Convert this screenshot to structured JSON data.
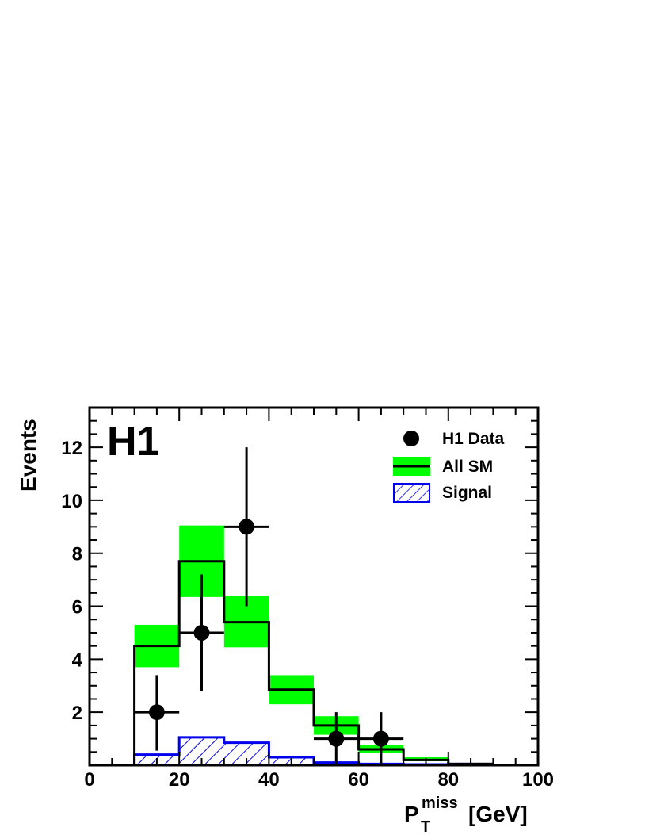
{
  "chart_data": {
    "type": "bar",
    "experiment_label": "H1",
    "xlabel": {
      "main": "P",
      "sup": "miss",
      "sub": "T",
      "unit": "[GeV]"
    },
    "ylabel": "Events",
    "xlim": [
      0,
      100
    ],
    "ylim": [
      0,
      13.5
    ],
    "x_ticks": [
      0,
      20,
      40,
      60,
      80,
      100
    ],
    "x_tick_labels": [
      "0",
      "20",
      "40",
      "60",
      "80",
      "100"
    ],
    "y_ticks": [
      2,
      4,
      6,
      8,
      10,
      12
    ],
    "y_tick_labels": [
      "2",
      "4",
      "6",
      "8",
      "10",
      "12"
    ],
    "grid": false,
    "legend_position": "top-right",
    "bin_edges": [
      0,
      10,
      20,
      30,
      40,
      50,
      60,
      70,
      80,
      90,
      100
    ],
    "series": [
      {
        "name": "H1 Data",
        "kind": "points",
        "color": "#000000",
        "points": [
          {
            "x": 15,
            "y": 2,
            "err_low": 1.45,
            "err_high": 1.4,
            "x_half_width": 5
          },
          {
            "x": 25,
            "y": 5,
            "err_low": 2.2,
            "err_high": 2.2,
            "x_half_width": 5
          },
          {
            "x": 35,
            "y": 9,
            "err_low": 3.0,
            "err_high": 3.0,
            "x_half_width": 5
          },
          {
            "x": 55,
            "y": 1,
            "err_low": 1.0,
            "err_high": 1.0,
            "x_half_width": 5
          },
          {
            "x": 65,
            "y": 1,
            "err_low": 1.0,
            "err_high": 1.0,
            "x_half_width": 5
          }
        ]
      },
      {
        "name": "All SM",
        "kind": "histogram",
        "color": "#000000",
        "band_color": "#00ff00",
        "values": [
          0,
          4.5,
          7.7,
          5.4,
          2.85,
          1.5,
          0.6,
          0.2,
          0.05,
          0
        ],
        "band_low": [
          0,
          3.7,
          6.35,
          4.45,
          2.3,
          1.15,
          0.45,
          0.15,
          0.03,
          0
        ],
        "band_high": [
          0,
          5.3,
          9.05,
          6.4,
          3.4,
          1.85,
          0.75,
          0.3,
          0.08,
          0
        ]
      },
      {
        "name": "Signal",
        "kind": "hatched-histogram",
        "color": "#0000ee",
        "values": [
          0,
          0.4,
          1.05,
          0.85,
          0.3,
          0.1,
          0.05,
          0.03,
          0.05,
          0
        ]
      }
    ]
  }
}
